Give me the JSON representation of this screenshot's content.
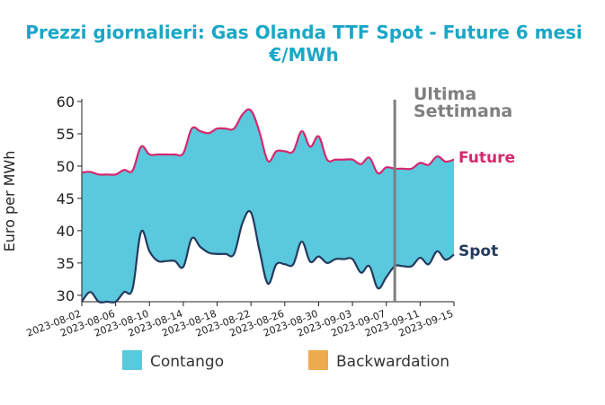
{
  "chart_data": {
    "type": "area",
    "title_line1": "Prezzi giornalieri: Gas Olanda TTF Spot - Future 6 mesi",
    "title_line2": "€/MWh",
    "ylabel": "Euro per MWh",
    "ylim": [
      29,
      60
    ],
    "yticks": [
      30,
      35,
      40,
      45,
      50,
      55,
      60
    ],
    "xlim": [
      "2023-08-02",
      "2023-09-15"
    ],
    "xticks": [
      "2023-08-02",
      "2023-08-06",
      "2023-08-10",
      "2023-08-14",
      "2023-08-18",
      "2023-08-22",
      "2023-08-26",
      "2023-08-30",
      "2023-09-03",
      "2023-09-07",
      "2023-09-11",
      "2023-09-15"
    ],
    "x": [
      "2023-08-02",
      "2023-08-03",
      "2023-08-04",
      "2023-08-05",
      "2023-08-06",
      "2023-08-07",
      "2023-08-08",
      "2023-08-09",
      "2023-08-10",
      "2023-08-11",
      "2023-08-12",
      "2023-08-13",
      "2023-08-14",
      "2023-08-15",
      "2023-08-16",
      "2023-08-17",
      "2023-08-18",
      "2023-08-19",
      "2023-08-20",
      "2023-08-21",
      "2023-08-22",
      "2023-08-23",
      "2023-08-24",
      "2023-08-25",
      "2023-08-26",
      "2023-08-27",
      "2023-08-28",
      "2023-08-29",
      "2023-08-30",
      "2023-08-31",
      "2023-09-01",
      "2023-09-02",
      "2023-09-03",
      "2023-09-04",
      "2023-09-05",
      "2023-09-06",
      "2023-09-07",
      "2023-09-08",
      "2023-09-09",
      "2023-09-10",
      "2023-09-11",
      "2023-09-12",
      "2023-09-13",
      "2023-09-14",
      "2023-09-15"
    ],
    "series": [
      {
        "name": "Future",
        "color": "#d6286e",
        "values": [
          49.0,
          49.1,
          48.7,
          48.7,
          48.7,
          49.4,
          49.3,
          53.0,
          51.8,
          51.8,
          51.8,
          51.8,
          52.0,
          55.8,
          55.4,
          55.1,
          55.8,
          55.8,
          55.8,
          58.0,
          58.6,
          55.3,
          50.8,
          52.3,
          52.3,
          52.3,
          55.4,
          53.0,
          54.6,
          51.0,
          51.0,
          51.0,
          51.0,
          50.3,
          51.3,
          48.9,
          49.8,
          49.6,
          49.6,
          49.6,
          50.5,
          50.2,
          51.5,
          50.7,
          51.0
        ]
      },
      {
        "name": "Spot",
        "color": "#243a5e",
        "values": [
          29.0,
          30.5,
          29.0,
          29.0,
          29.0,
          30.5,
          31.0,
          39.8,
          36.8,
          35.3,
          35.3,
          35.3,
          34.4,
          38.8,
          37.5,
          36.6,
          36.4,
          36.4,
          36.4,
          41.2,
          42.8,
          37.0,
          31.8,
          34.8,
          34.8,
          34.8,
          38.3,
          35.2,
          36.0,
          35.0,
          35.6,
          35.6,
          35.6,
          33.5,
          34.5,
          31.1,
          32.8,
          34.5,
          34.5,
          34.5,
          35.8,
          34.8,
          36.8,
          35.5,
          36.3
        ]
      }
    ],
    "vline_date": "2023-09-08",
    "vline_label_line1": "Ultima",
    "vline_label_line2": "Settimana",
    "vline_color": "#7f7f7f",
    "legend": [
      {
        "label": "Contango",
        "color": "#5ac8dd"
      },
      {
        "label": "Backwardation",
        "color": "#edab4f"
      }
    ],
    "legend_position": "bottom",
    "grid": false,
    "fill_color": "#5ac8dd"
  }
}
